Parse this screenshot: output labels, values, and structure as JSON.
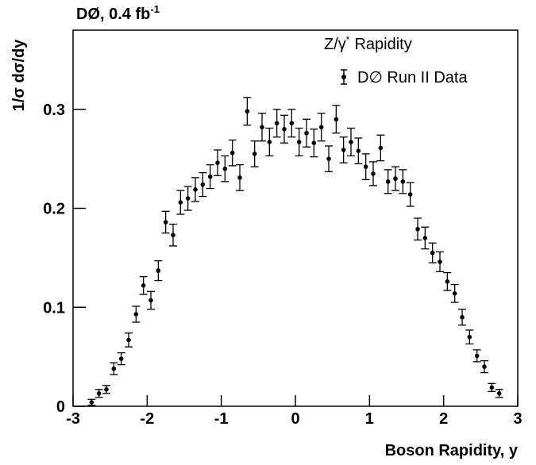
{
  "chart_data": {
    "type": "scatter",
    "title": "DØ, 0.4 fb",
    "title_sup": "-1",
    "annotation": "Z/γ",
    "annotation_sup": "*",
    "annotation_tail": "Rapidity",
    "x_label": "Boson Rapidity, y",
    "y_label": "1/σ dσ/dy",
    "xlim": [
      -3,
      3
    ],
    "ylim": [
      0,
      0.38
    ],
    "xticks": [
      -3,
      -2,
      -1,
      0,
      1,
      2,
      3
    ],
    "yticks": [
      0,
      0.1,
      0.2,
      0.3
    ],
    "series": [
      {
        "name": "D∅ Run II Data",
        "color": "#000000",
        "x": [
          -2.75,
          -2.65,
          -2.55,
          -2.45,
          -2.35,
          -2.25,
          -2.15,
          -2.05,
          -1.95,
          -1.85,
          -1.75,
          -1.65,
          -1.55,
          -1.45,
          -1.35,
          -1.25,
          -1.15,
          -1.05,
          -0.95,
          -0.85,
          -0.75,
          -0.65,
          -0.55,
          -0.45,
          -0.35,
          -0.25,
          -0.15,
          -0.05,
          0.05,
          0.15,
          0.25,
          0.35,
          0.45,
          0.55,
          0.65,
          0.75,
          0.85,
          0.95,
          1.05,
          1.15,
          1.25,
          1.35,
          1.45,
          1.55,
          1.65,
          1.75,
          1.85,
          1.95,
          2.05,
          2.15,
          2.25,
          2.35,
          2.45,
          2.55,
          2.65,
          2.75
        ],
        "values": [
          0.004,
          0.013,
          0.017,
          0.038,
          0.048,
          0.067,
          0.093,
          0.122,
          0.107,
          0.137,
          0.186,
          0.173,
          0.206,
          0.21,
          0.219,
          0.224,
          0.232,
          0.246,
          0.24,
          0.256,
          0.231,
          0.298,
          0.255,
          0.282,
          0.267,
          0.286,
          0.28,
          0.286,
          0.267,
          0.276,
          0.266,
          0.282,
          0.25,
          0.29,
          0.259,
          0.267,
          0.258,
          0.242,
          0.235,
          0.261,
          0.227,
          0.23,
          0.227,
          0.214,
          0.179,
          0.17,
          0.155,
          0.146,
          0.126,
          0.114,
          0.09,
          0.07,
          0.051,
          0.04,
          0.019,
          0.013
        ],
        "errors": [
          0.003,
          0.004,
          0.004,
          0.006,
          0.006,
          0.007,
          0.008,
          0.009,
          0.009,
          0.01,
          0.011,
          0.011,
          0.012,
          0.012,
          0.012,
          0.012,
          0.012,
          0.013,
          0.013,
          0.013,
          0.013,
          0.014,
          0.013,
          0.014,
          0.014,
          0.014,
          0.014,
          0.014,
          0.014,
          0.014,
          0.014,
          0.014,
          0.013,
          0.014,
          0.013,
          0.014,
          0.013,
          0.013,
          0.012,
          0.013,
          0.012,
          0.012,
          0.012,
          0.012,
          0.011,
          0.011,
          0.01,
          0.01,
          0.009,
          0.009,
          0.008,
          0.007,
          0.006,
          0.006,
          0.004,
          0.004
        ]
      }
    ]
  }
}
